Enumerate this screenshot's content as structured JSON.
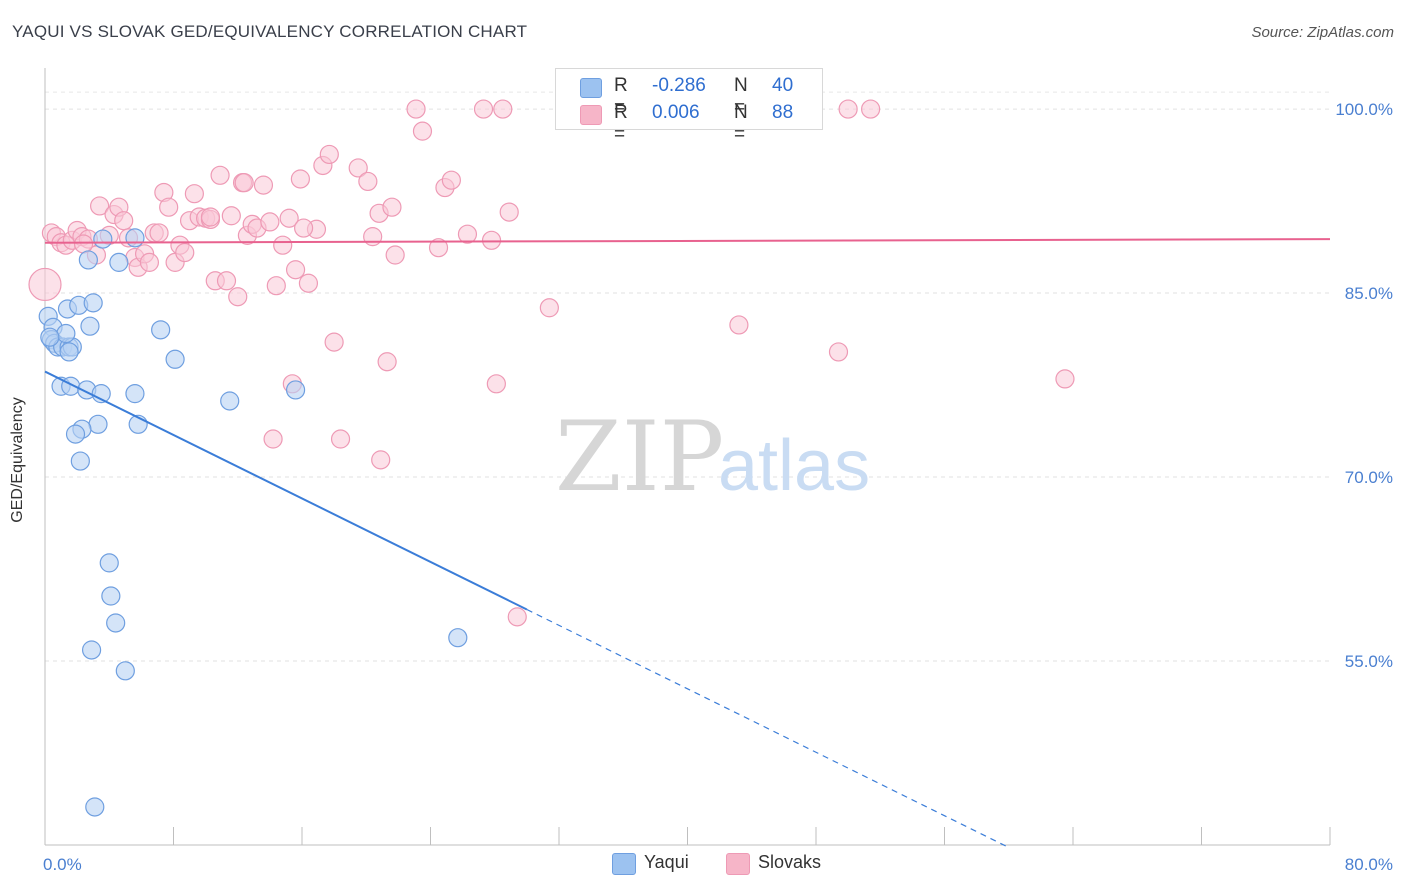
{
  "header": {
    "title": "YAQUI VS SLOVAK GED/EQUIVALENCY CORRELATION CHART",
    "source": "Source: ZipAtlas.com"
  },
  "watermark": {
    "zip": "ZIP",
    "atlas": "atlas"
  },
  "stats": {
    "r_label": "R =",
    "n_label": "N =",
    "yaqui": {
      "r": "-0.286",
      "n": "40",
      "color": "#9cc2f0"
    },
    "slovaks": {
      "r": "0.006",
      "n": "88",
      "color": "#f6b5c8"
    }
  },
  "legend": {
    "yaqui": "Yaqui",
    "slovaks": "Slovaks"
  },
  "chart_data": {
    "type": "scatter",
    "title": "YAQUI VS SLOVAK GED/EQUIVALENCY CORRELATION CHART",
    "xlabel": "",
    "ylabel": "GED/Equivalency",
    "xlim": [
      0,
      80
    ],
    "ylim": [
      40,
      104
    ],
    "x_tick_labels": [
      "0.0%",
      "80.0%"
    ],
    "y_ticks": [
      55,
      70,
      85,
      100
    ],
    "y_tick_labels": [
      "55.0%",
      "70.0%",
      "85.0%",
      "100.0%"
    ],
    "grid": true,
    "legend_position": "bottom-center",
    "colors": {
      "yaqui": "#3b7dd8",
      "slovaks": "#e8628f"
    },
    "series": [
      {
        "name": "Yaqui",
        "trend": {
          "x": [
            0,
            30
          ],
          "y": [
            78.6,
            59.2
          ],
          "dashed_to": [
            60,
            39.8
          ]
        },
        "points": [
          [
            0.2,
            83.1
          ],
          [
            0.5,
            82.2
          ],
          [
            0.4,
            81.2
          ],
          [
            0.6,
            80.9
          ],
          [
            0.8,
            80.6
          ],
          [
            1.1,
            80.6
          ],
          [
            1.5,
            80.6
          ],
          [
            1.7,
            80.6
          ],
          [
            1.3,
            81.7
          ],
          [
            1.4,
            83.7
          ],
          [
            2.1,
            84.0
          ],
          [
            3.0,
            84.2
          ],
          [
            2.8,
            82.3
          ],
          [
            2.7,
            87.7
          ],
          [
            3.6,
            89.4
          ],
          [
            4.6,
            87.5
          ],
          [
            5.6,
            89.5
          ],
          [
            7.2,
            82.0
          ],
          [
            8.1,
            79.6
          ],
          [
            1.0,
            77.4
          ],
          [
            1.6,
            77.4
          ],
          [
            2.6,
            77.1
          ],
          [
            3.5,
            76.8
          ],
          [
            5.6,
            76.8
          ],
          [
            11.5,
            76.2
          ],
          [
            15.6,
            77.1
          ],
          [
            3.3,
            74.3
          ],
          [
            5.8,
            74.3
          ],
          [
            2.3,
            73.9
          ],
          [
            1.9,
            73.5
          ],
          [
            2.2,
            71.3
          ],
          [
            4.0,
            63.0
          ],
          [
            4.1,
            60.3
          ],
          [
            4.4,
            58.1
          ],
          [
            2.9,
            55.9
          ],
          [
            5.0,
            54.2
          ],
          [
            25.7,
            56.9
          ],
          [
            3.1,
            43.1
          ],
          [
            1.5,
            80.2
          ],
          [
            0.3,
            81.4
          ]
        ]
      },
      {
        "name": "Slovaks",
        "trend": {
          "x": [
            0,
            80
          ],
          "y": [
            89.1,
            89.4
          ]
        },
        "points": [
          [
            0.0,
            85.7
          ],
          [
            0.4,
            89.9
          ],
          [
            0.7,
            89.6
          ],
          [
            1.0,
            89.1
          ],
          [
            1.3,
            88.9
          ],
          [
            1.7,
            89.3
          ],
          [
            2.0,
            90.1
          ],
          [
            2.3,
            89.6
          ],
          [
            2.7,
            89.4
          ],
          [
            3.2,
            88.1
          ],
          [
            3.4,
            92.1
          ],
          [
            4.0,
            89.7
          ],
          [
            4.3,
            91.4
          ],
          [
            4.6,
            92.0
          ],
          [
            4.9,
            90.9
          ],
          [
            5.2,
            89.5
          ],
          [
            5.6,
            87.9
          ],
          [
            5.8,
            87.1
          ],
          [
            6.2,
            88.2
          ],
          [
            6.5,
            87.5
          ],
          [
            6.8,
            89.9
          ],
          [
            7.1,
            89.9
          ],
          [
            7.4,
            93.2
          ],
          [
            7.7,
            92.0
          ],
          [
            8.1,
            87.5
          ],
          [
            8.4,
            88.9
          ],
          [
            8.7,
            88.3
          ],
          [
            9.0,
            90.9
          ],
          [
            9.3,
            93.1
          ],
          [
            9.6,
            91.2
          ],
          [
            10.0,
            91.1
          ],
          [
            10.3,
            91.0
          ],
          [
            10.6,
            86.0
          ],
          [
            10.9,
            94.6
          ],
          [
            11.3,
            86.0
          ],
          [
            11.6,
            91.3
          ],
          [
            12.0,
            84.7
          ],
          [
            12.3,
            94.0
          ],
          [
            12.6,
            89.7
          ],
          [
            12.9,
            90.6
          ],
          [
            13.2,
            90.3
          ],
          [
            13.6,
            93.8
          ],
          [
            14.0,
            90.8
          ],
          [
            14.4,
            85.6
          ],
          [
            14.8,
            88.9
          ],
          [
            15.2,
            91.1
          ],
          [
            15.6,
            86.9
          ],
          [
            15.9,
            94.3
          ],
          [
            16.4,
            85.8
          ],
          [
            16.9,
            90.2
          ],
          [
            17.3,
            95.4
          ],
          [
            17.7,
            96.3
          ],
          [
            18.0,
            81.0
          ],
          [
            18.4,
            73.1
          ],
          [
            19.5,
            95.2
          ],
          [
            20.1,
            94.1
          ],
          [
            20.4,
            89.6
          ],
          [
            20.8,
            91.5
          ],
          [
            21.3,
            79.4
          ],
          [
            21.6,
            92.0
          ],
          [
            21.8,
            88.1
          ],
          [
            23.1,
            100.0
          ],
          [
            23.5,
            98.2
          ],
          [
            24.5,
            88.7
          ],
          [
            24.9,
            93.6
          ],
          [
            25.3,
            94.2
          ],
          [
            26.3,
            89.8
          ],
          [
            27.3,
            100.0
          ],
          [
            27.8,
            89.3
          ],
          [
            28.1,
            77.6
          ],
          [
            28.5,
            100.0
          ],
          [
            28.9,
            91.6
          ],
          [
            29.4,
            58.6
          ],
          [
            31.4,
            83.8
          ],
          [
            37.9,
            100.0
          ],
          [
            40.2,
            100.0
          ],
          [
            43.2,
            82.4
          ],
          [
            49.4,
            80.2
          ],
          [
            50.0,
            100.0
          ],
          [
            51.4,
            100.0
          ],
          [
            63.5,
            78.0
          ],
          [
            15.4,
            77.6
          ],
          [
            14.2,
            73.1
          ],
          [
            20.9,
            71.4
          ],
          [
            10.3,
            91.2
          ],
          [
            2.4,
            89.0
          ],
          [
            12.4,
            94.0
          ],
          [
            16.1,
            90.3
          ]
        ]
      }
    ]
  }
}
